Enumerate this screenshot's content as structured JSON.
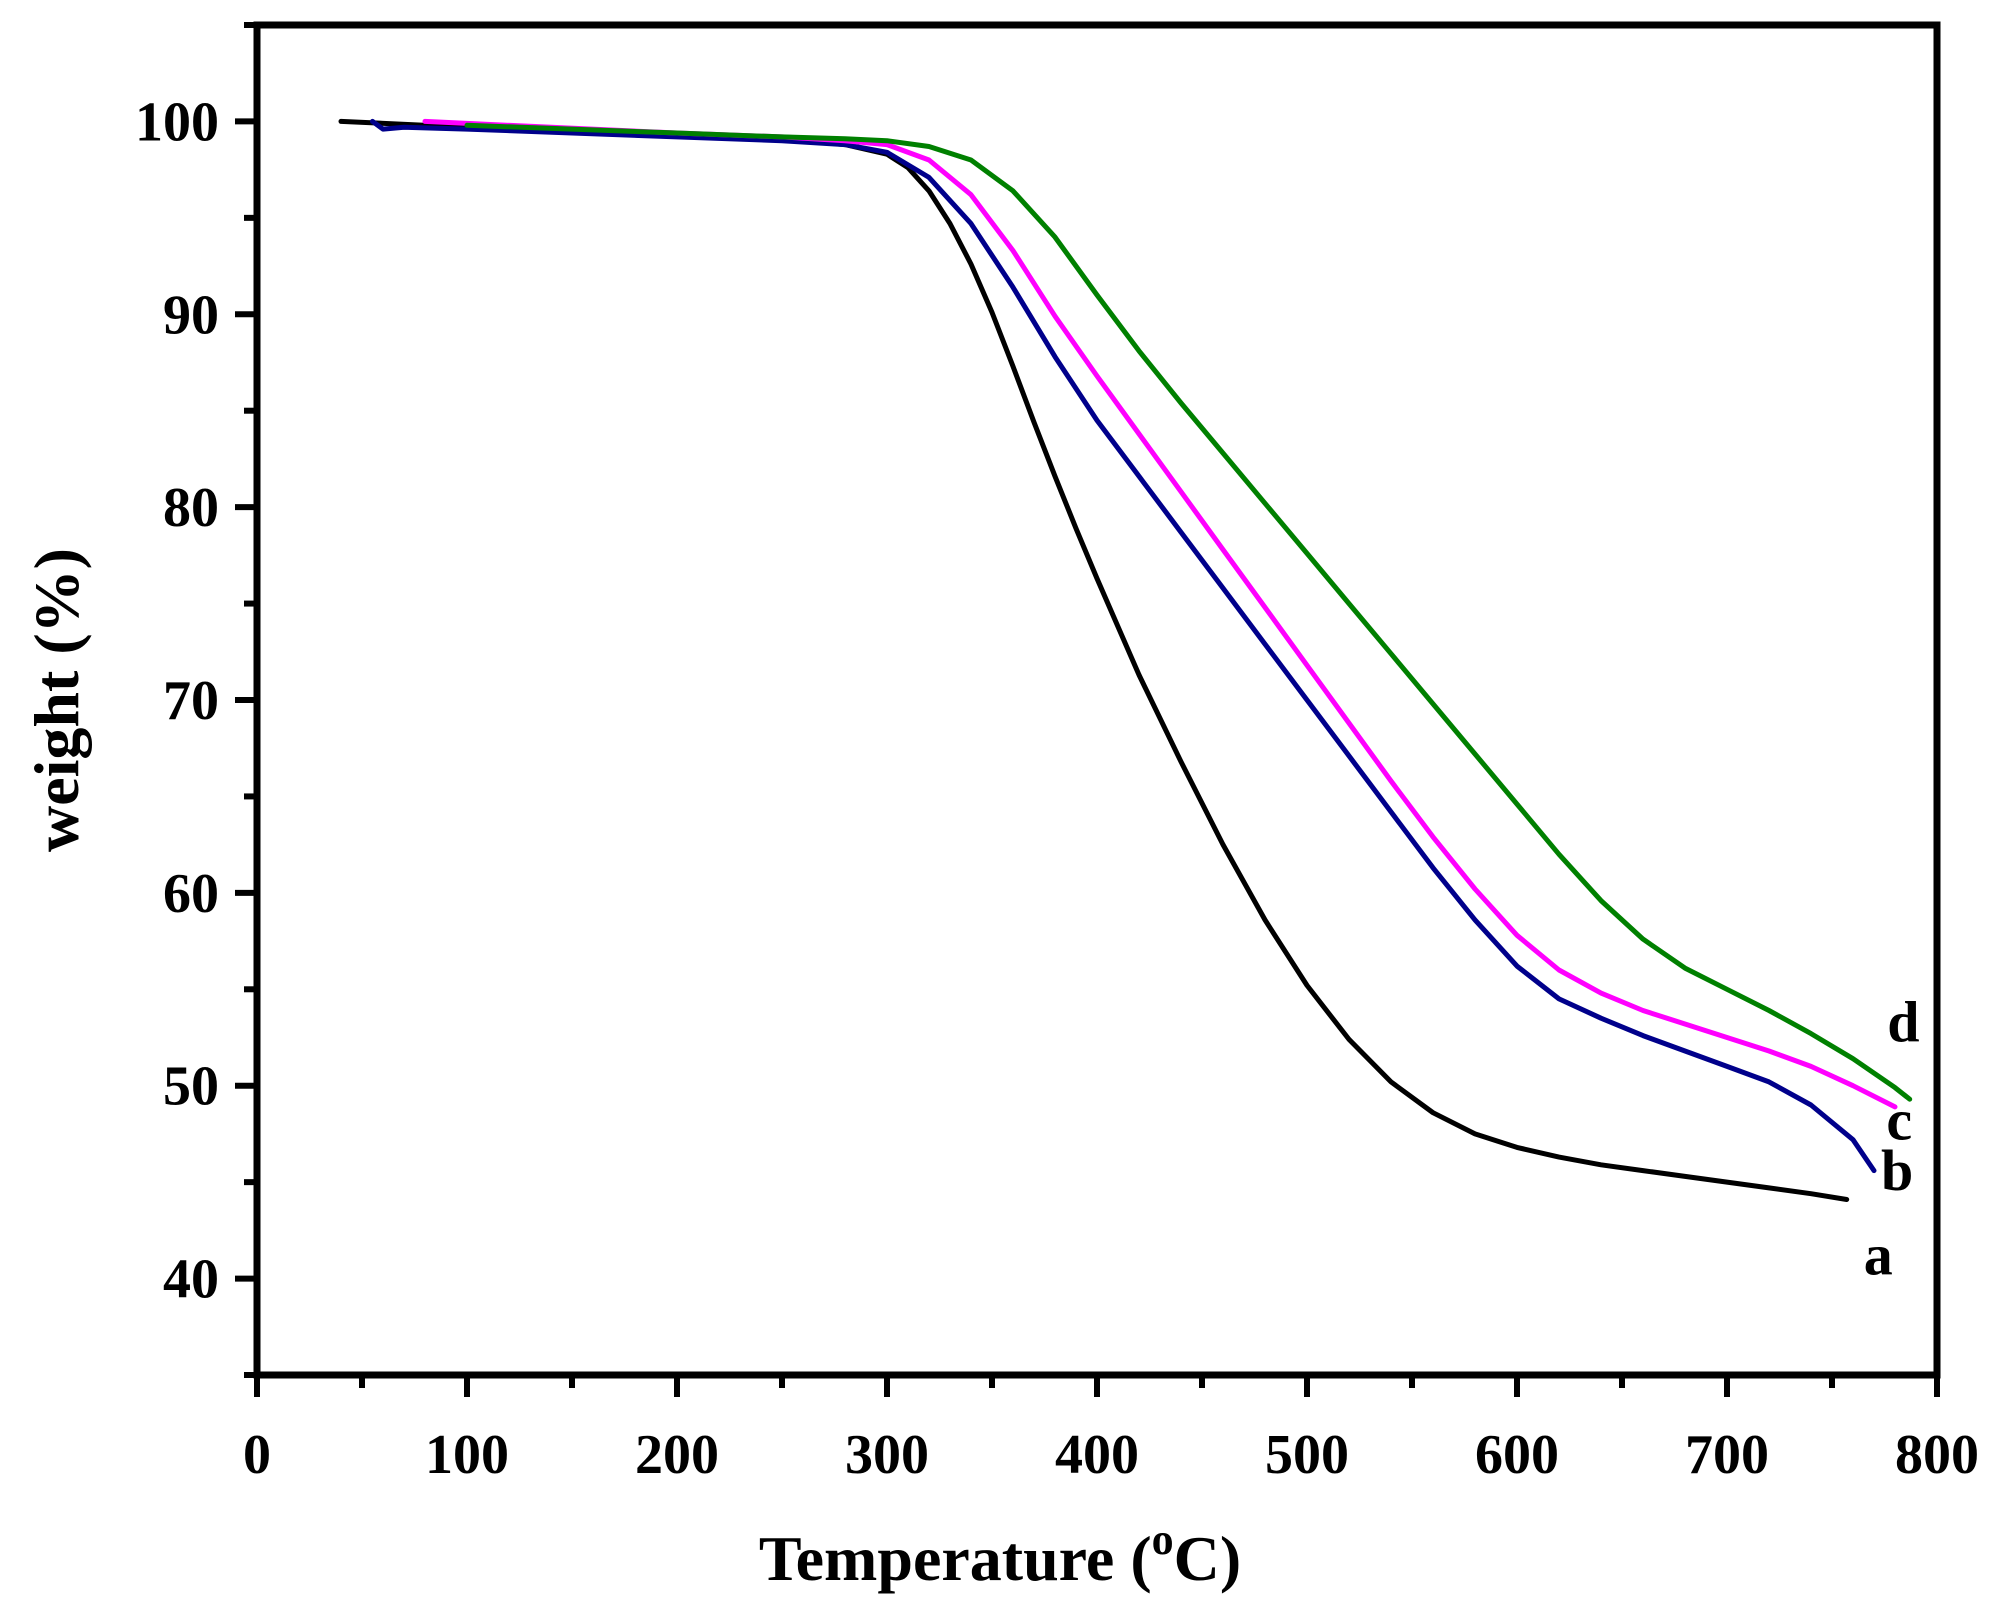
{
  "chart_data": {
    "type": "line",
    "title": "",
    "xlabel": "Temperature (",
    "xlabel_sup": "o",
    "xlabel_unit": "C)",
    "ylabel": "weight (%)",
    "xlim": [
      0,
      800
    ],
    "ylim": [
      35,
      105
    ],
    "xticks": [
      0,
      100,
      200,
      300,
      400,
      500,
      600,
      700,
      800
    ],
    "xtick_labels": [
      "0",
      "100",
      "200",
      "300",
      "400",
      "500",
      "600",
      "700",
      "800"
    ],
    "yticks": [
      40,
      50,
      60,
      70,
      80,
      90,
      100
    ],
    "ytick_labels": [
      "40",
      "50",
      "60",
      "70",
      "80",
      "90",
      "100"
    ],
    "grid": false,
    "series": [
      {
        "name": "a",
        "color": "#000000",
        "x": [
          40,
          100,
          200,
          250,
          280,
          300,
          310,
          320,
          330,
          340,
          350,
          360,
          370,
          380,
          390,
          400,
          420,
          440,
          460,
          480,
          500,
          520,
          540,
          560,
          580,
          600,
          620,
          640,
          660,
          680,
          700,
          720,
          740,
          757
        ],
        "y": [
          100,
          99.7,
          99.3,
          99.1,
          98.8,
          98.3,
          97.6,
          96.4,
          94.7,
          92.6,
          90.1,
          87.3,
          84.4,
          81.6,
          78.9,
          76.3,
          71.3,
          66.8,
          62.5,
          58.6,
          55.2,
          52.4,
          50.2,
          48.6,
          47.5,
          46.8,
          46.3,
          45.9,
          45.6,
          45.3,
          45.0,
          44.7,
          44.4,
          44.1
        ]
      },
      {
        "name": "b",
        "color": "#00008B",
        "x": [
          55,
          60,
          70,
          100,
          200,
          250,
          280,
          300,
          320,
          340,
          360,
          380,
          400,
          420,
          440,
          460,
          480,
          500,
          520,
          540,
          560,
          580,
          600,
          620,
          640,
          660,
          680,
          700,
          720,
          740,
          760,
          770
        ],
        "y": [
          100,
          99.6,
          99.7,
          99.6,
          99.2,
          99.0,
          98.8,
          98.4,
          97.1,
          94.7,
          91.4,
          87.8,
          84.5,
          81.6,
          78.7,
          75.8,
          72.9,
          70.0,
          67.1,
          64.2,
          61.3,
          58.6,
          56.2,
          54.5,
          53.5,
          52.6,
          51.8,
          51.0,
          50.2,
          49.0,
          47.2,
          45.6
        ]
      },
      {
        "name": "c",
        "color": "#FF00FF",
        "x": [
          80,
          100,
          200,
          250,
          280,
          300,
          320,
          340,
          360,
          380,
          400,
          420,
          440,
          460,
          480,
          500,
          520,
          540,
          560,
          580,
          600,
          620,
          640,
          660,
          680,
          700,
          720,
          740,
          760,
          780
        ],
        "y": [
          100,
          99.9,
          99.4,
          99.2,
          99.0,
          98.8,
          98.0,
          96.2,
          93.3,
          89.9,
          86.8,
          83.8,
          80.8,
          77.8,
          74.8,
          71.8,
          68.8,
          65.8,
          62.9,
          60.2,
          57.8,
          56.0,
          54.8,
          53.9,
          53.2,
          52.5,
          51.8,
          51.0,
          50.0,
          48.9
        ]
      },
      {
        "name": "d",
        "color": "#008000",
        "x": [
          100,
          200,
          250,
          280,
          300,
          320,
          340,
          360,
          380,
          400,
          420,
          440,
          460,
          480,
          500,
          520,
          540,
          560,
          580,
          600,
          620,
          640,
          660,
          680,
          700,
          720,
          740,
          760,
          780,
          787
        ],
        "y": [
          99.8,
          99.4,
          99.2,
          99.1,
          99.0,
          98.7,
          98.0,
          96.4,
          94.0,
          91.0,
          88.1,
          85.4,
          82.8,
          80.2,
          77.6,
          75.0,
          72.4,
          69.8,
          67.2,
          64.6,
          62.0,
          59.6,
          57.6,
          56.1,
          55.0,
          53.9,
          52.7,
          51.4,
          49.9,
          49.3
        ]
      }
    ],
    "curve_labels": [
      {
        "text": "a",
        "x": 772,
        "y": 40.2
      },
      {
        "text": "b",
        "x": 781,
        "y": 44.6
      },
      {
        "text": "c",
        "x": 782,
        "y": 47.2
      },
      {
        "text": "d",
        "x": 784,
        "y": 52.3
      }
    ]
  }
}
